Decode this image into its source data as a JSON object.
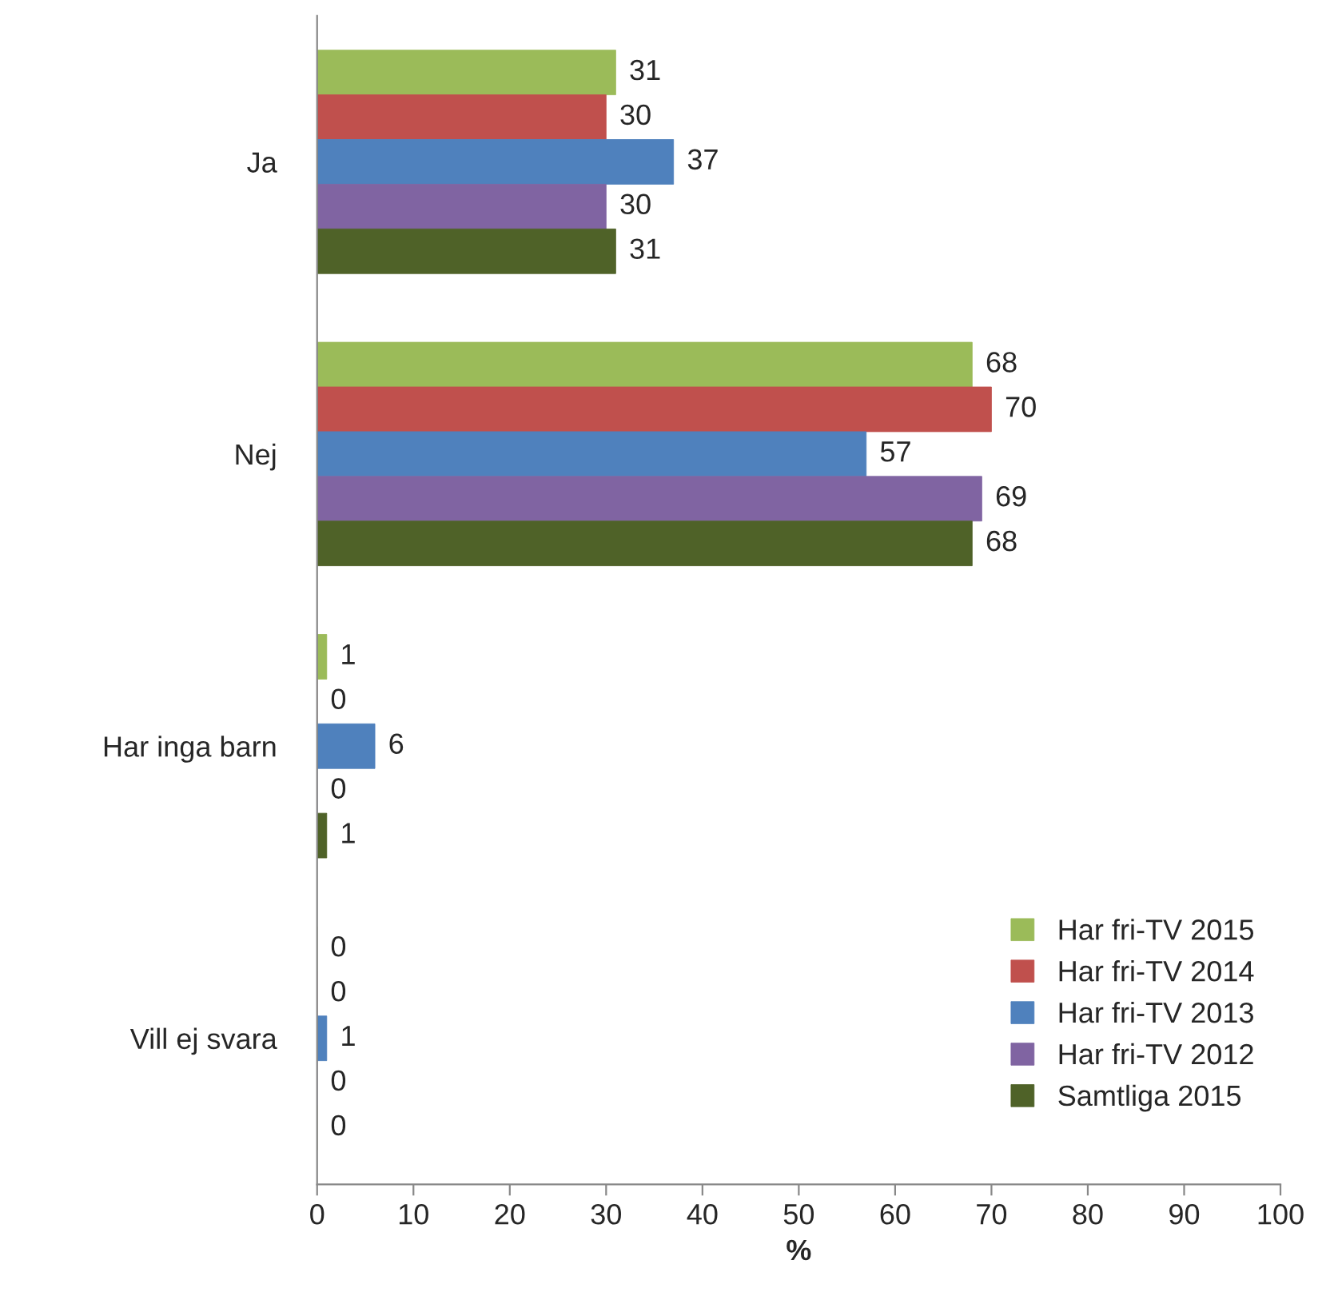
{
  "chart_data": {
    "type": "bar",
    "orientation": "horizontal",
    "xlabel": "%",
    "categories": [
      "Ja",
      "Nej",
      "Har inga barn",
      "Vill ej svara"
    ],
    "series": [
      {
        "name": "Har fri-TV 2015",
        "color": "#9bbb59",
        "values": [
          31,
          68,
          1,
          0
        ]
      },
      {
        "name": "Har fri-TV 2014",
        "color": "#c0504d",
        "values": [
          30,
          70,
          0,
          0
        ]
      },
      {
        "name": "Har fri-TV 2013",
        "color": "#4f81bd",
        "values": [
          37,
          57,
          6,
          1
        ]
      },
      {
        "name": "Har fri-TV 2012",
        "color": "#8064a2",
        "values": [
          30,
          69,
          0,
          0
        ]
      },
      {
        "name": "Samtliga 2015",
        "color": "#4f6228",
        "values": [
          31,
          68,
          1,
          0
        ]
      }
    ],
    "xlim": [
      0,
      100
    ],
    "xticks": [
      0,
      10,
      20,
      30,
      40,
      50,
      60,
      70,
      80,
      90,
      100
    ],
    "data_labels": true,
    "legend": "bottom right",
    "grid": false
  }
}
